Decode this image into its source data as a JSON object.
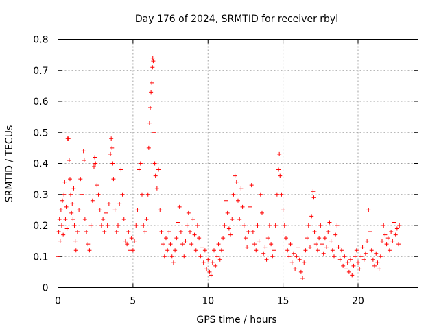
{
  "chart_data": {
    "type": "scatter",
    "title": "Day 176 of 2024, SRMTID for receiver rbyl",
    "xlabel": "GPS time / hours",
    "ylabel": "SRMTID / TECUs",
    "xlim": [
      0,
      24
    ],
    "ylim": [
      0,
      0.8
    ],
    "xticks": [
      0,
      5,
      10,
      15,
      20
    ],
    "yticks": [
      0,
      0.1,
      0.2,
      0.3,
      0.4,
      0.5,
      0.6,
      0.7,
      0.8
    ],
    "xtick_labels": [
      "0",
      "5",
      "10",
      "15",
      "20"
    ],
    "ytick_labels": [
      "0",
      "0.1",
      "0.2",
      "0.3",
      "0.4",
      "0.5",
      "0.6",
      "0.7",
      "0.8"
    ],
    "grid": true,
    "marker": "+",
    "color": "#ff0000",
    "series": [
      {
        "name": "SRMTID",
        "points": [
          [
            0.0,
            0.1
          ],
          [
            0.05,
            0.18
          ],
          [
            0.1,
            0.22
          ],
          [
            0.15,
            0.15
          ],
          [
            0.2,
            0.25
          ],
          [
            0.25,
            0.2
          ],
          [
            0.3,
            0.28
          ],
          [
            0.35,
            0.17
          ],
          [
            0.4,
            0.3
          ],
          [
            0.45,
            0.34
          ],
          [
            0.5,
            0.22
          ],
          [
            0.55,
            0.26
          ],
          [
            0.6,
            0.19
          ],
          [
            0.65,
            0.48
          ],
          [
            0.7,
            0.48
          ],
          [
            0.75,
            0.41
          ],
          [
            0.8,
            0.35
          ],
          [
            0.85,
            0.3
          ],
          [
            0.9,
            0.24
          ],
          [
            0.95,
            0.27
          ],
          [
            1.0,
            0.22
          ],
          [
            1.05,
            0.32
          ],
          [
            1.1,
            0.2
          ],
          [
            1.15,
            0.15
          ],
          [
            1.2,
            0.12
          ],
          [
            1.3,
            0.18
          ],
          [
            1.4,
            0.25
          ],
          [
            1.5,
            0.35
          ],
          [
            1.6,
            0.3
          ],
          [
            1.7,
            0.44
          ],
          [
            1.75,
            0.41
          ],
          [
            1.8,
            0.22
          ],
          [
            1.9,
            0.18
          ],
          [
            2.0,
            0.14
          ],
          [
            2.1,
            0.12
          ],
          [
            2.2,
            0.2
          ],
          [
            2.3,
            0.28
          ],
          [
            2.4,
            0.39
          ],
          [
            2.45,
            0.42
          ],
          [
            2.5,
            0.4
          ],
          [
            2.6,
            0.33
          ],
          [
            2.7,
            0.3
          ],
          [
            2.8,
            0.25
          ],
          [
            2.9,
            0.2
          ],
          [
            3.0,
            0.22
          ],
          [
            3.1,
            0.18
          ],
          [
            3.2,
            0.24
          ],
          [
            3.3,
            0.2
          ],
          [
            3.4,
            0.27
          ],
          [
            3.5,
            0.43
          ],
          [
            3.55,
            0.48
          ],
          [
            3.6,
            0.45
          ],
          [
            3.65,
            0.4
          ],
          [
            3.7,
            0.35
          ],
          [
            3.8,
            0.25
          ],
          [
            3.9,
            0.18
          ],
          [
            4.0,
            0.2
          ],
          [
            4.1,
            0.27
          ],
          [
            4.2,
            0.38
          ],
          [
            4.3,
            0.3
          ],
          [
            4.4,
            0.22
          ],
          [
            4.5,
            0.15
          ],
          [
            4.6,
            0.14
          ],
          [
            4.7,
            0.18
          ],
          [
            4.8,
            0.12
          ],
          [
            4.9,
            0.16
          ],
          [
            5.0,
            0.12
          ],
          [
            5.1,
            0.15
          ],
          [
            5.2,
            0.2
          ],
          [
            5.3,
            0.25
          ],
          [
            5.4,
            0.38
          ],
          [
            5.5,
            0.4
          ],
          [
            5.6,
            0.3
          ],
          [
            5.7,
            0.2
          ],
          [
            5.8,
            0.18
          ],
          [
            5.9,
            0.22
          ],
          [
            6.0,
            0.3
          ],
          [
            6.05,
            0.45
          ],
          [
            6.1,
            0.53
          ],
          [
            6.15,
            0.58
          ],
          [
            6.2,
            0.63
          ],
          [
            6.25,
            0.66
          ],
          [
            6.3,
            0.71
          ],
          [
            6.32,
            0.74
          ],
          [
            6.35,
            0.73
          ],
          [
            6.4,
            0.5
          ],
          [
            6.45,
            0.4
          ],
          [
            6.5,
            0.36
          ],
          [
            6.6,
            0.32
          ],
          [
            6.7,
            0.38
          ],
          [
            6.8,
            0.25
          ],
          [
            6.9,
            0.18
          ],
          [
            7.0,
            0.14
          ],
          [
            7.1,
            0.1
          ],
          [
            7.2,
            0.16
          ],
          [
            7.3,
            0.12
          ],
          [
            7.4,
            0.18
          ],
          [
            7.5,
            0.14
          ],
          [
            7.6,
            0.1
          ],
          [
            7.7,
            0.08
          ],
          [
            7.8,
            0.12
          ],
          [
            7.9,
            0.16
          ],
          [
            8.0,
            0.21
          ],
          [
            8.1,
            0.26
          ],
          [
            8.2,
            0.18
          ],
          [
            8.3,
            0.14
          ],
          [
            8.4,
            0.1
          ],
          [
            8.5,
            0.15
          ],
          [
            8.6,
            0.2
          ],
          [
            8.7,
            0.24
          ],
          [
            8.8,
            0.18
          ],
          [
            8.9,
            0.14
          ],
          [
            9.0,
            0.22
          ],
          [
            9.1,
            0.17
          ],
          [
            9.2,
            0.12
          ],
          [
            9.3,
            0.2
          ],
          [
            9.4,
            0.16
          ],
          [
            9.5,
            0.1
          ],
          [
            9.6,
            0.13
          ],
          [
            9.7,
            0.08
          ],
          [
            9.8,
            0.12
          ],
          [
            9.9,
            0.06
          ],
          [
            10.0,
            0.09
          ],
          [
            10.1,
            0.05
          ],
          [
            10.2,
            0.04
          ],
          [
            10.3,
            0.08
          ],
          [
            10.4,
            0.12
          ],
          [
            10.5,
            0.07
          ],
          [
            10.6,
            0.1
          ],
          [
            10.7,
            0.14
          ],
          [
            10.8,
            0.09
          ],
          [
            10.9,
            0.12
          ],
          [
            11.0,
            0.16
          ],
          [
            11.1,
            0.2
          ],
          [
            11.2,
            0.28
          ],
          [
            11.3,
            0.24
          ],
          [
            11.4,
            0.19
          ],
          [
            11.5,
            0.17
          ],
          [
            11.6,
            0.22
          ],
          [
            11.7,
            0.3
          ],
          [
            11.8,
            0.36
          ],
          [
            11.9,
            0.34
          ],
          [
            12.0,
            0.28
          ],
          [
            12.1,
            0.22
          ],
          [
            12.2,
            0.32
          ],
          [
            12.3,
            0.26
          ],
          [
            12.4,
            0.2
          ],
          [
            12.5,
            0.16
          ],
          [
            12.6,
            0.13
          ],
          [
            12.7,
            0.18
          ],
          [
            12.8,
            0.26
          ],
          [
            12.9,
            0.33
          ],
          [
            13.0,
            0.18
          ],
          [
            13.1,
            0.14
          ],
          [
            13.2,
            0.12
          ],
          [
            13.3,
            0.2
          ],
          [
            13.4,
            0.15
          ],
          [
            13.5,
            0.3
          ],
          [
            13.6,
            0.24
          ],
          [
            13.7,
            0.11
          ],
          [
            13.8,
            0.13
          ],
          [
            13.9,
            0.09
          ],
          [
            14.0,
            0.16
          ],
          [
            14.1,
            0.2
          ],
          [
            14.2,
            0.14
          ],
          [
            14.3,
            0.1
          ],
          [
            14.4,
            0.12
          ],
          [
            14.5,
            0.2
          ],
          [
            14.6,
            0.3
          ],
          [
            14.7,
            0.38
          ],
          [
            14.75,
            0.43
          ],
          [
            14.8,
            0.36
          ],
          [
            14.9,
            0.3
          ],
          [
            15.0,
            0.25
          ],
          [
            15.1,
            0.2
          ],
          [
            15.2,
            0.16
          ],
          [
            15.3,
            0.12
          ],
          [
            15.4,
            0.1
          ],
          [
            15.5,
            0.14
          ],
          [
            15.6,
            0.08
          ],
          [
            15.7,
            0.11
          ],
          [
            15.8,
            0.06
          ],
          [
            15.9,
            0.1
          ],
          [
            16.0,
            0.13
          ],
          [
            16.1,
            0.09
          ],
          [
            16.2,
            0.05
          ],
          [
            16.3,
            0.03
          ],
          [
            16.4,
            0.08
          ],
          [
            16.5,
            0.12
          ],
          [
            16.6,
            0.16
          ],
          [
            16.7,
            0.2
          ],
          [
            16.8,
            0.13
          ],
          [
            16.9,
            0.23
          ],
          [
            17.0,
            0.31
          ],
          [
            17.05,
            0.29
          ],
          [
            17.1,
            0.18
          ],
          [
            17.2,
            0.14
          ],
          [
            17.3,
            0.12
          ],
          [
            17.4,
            0.16
          ],
          [
            17.5,
            0.2
          ],
          [
            17.6,
            0.14
          ],
          [
            17.7,
            0.11
          ],
          [
            17.8,
            0.16
          ],
          [
            17.9,
            0.13
          ],
          [
            18.0,
            0.18
          ],
          [
            18.1,
            0.21
          ],
          [
            18.2,
            0.15
          ],
          [
            18.3,
            0.12
          ],
          [
            18.4,
            0.1
          ],
          [
            18.5,
            0.17
          ],
          [
            18.6,
            0.2
          ],
          [
            18.7,
            0.13
          ],
          [
            18.8,
            0.09
          ],
          [
            18.9,
            0.12
          ],
          [
            19.0,
            0.07
          ],
          [
            19.1,
            0.1
          ],
          [
            19.2,
            0.06
          ],
          [
            19.3,
            0.08
          ],
          [
            19.4,
            0.05
          ],
          [
            19.5,
            0.09
          ],
          [
            19.6,
            0.04
          ],
          [
            19.7,
            0.07
          ],
          [
            19.8,
            0.1
          ],
          [
            19.9,
            0.12
          ],
          [
            20.0,
            0.08
          ],
          [
            20.1,
            0.06
          ],
          [
            20.2,
            0.1
          ],
          [
            20.3,
            0.13
          ],
          [
            20.4,
            0.09
          ],
          [
            20.5,
            0.11
          ],
          [
            20.6,
            0.15
          ],
          [
            20.7,
            0.25
          ],
          [
            20.8,
            0.18
          ],
          [
            20.9,
            0.12
          ],
          [
            21.0,
            0.09
          ],
          [
            21.1,
            0.07
          ],
          [
            21.2,
            0.11
          ],
          [
            21.3,
            0.08
          ],
          [
            21.4,
            0.06
          ],
          [
            21.5,
            0.1
          ],
          [
            21.6,
            0.15
          ],
          [
            21.7,
            0.2
          ],
          [
            21.8,
            0.17
          ],
          [
            21.9,
            0.14
          ],
          [
            22.0,
            0.16
          ],
          [
            22.1,
            0.12
          ],
          [
            22.2,
            0.18
          ],
          [
            22.3,
            0.15
          ],
          [
            22.4,
            0.21
          ],
          [
            22.5,
            0.17
          ],
          [
            22.6,
            0.19
          ],
          [
            22.7,
            0.14
          ],
          [
            22.75,
            0.2
          ]
        ]
      }
    ]
  }
}
